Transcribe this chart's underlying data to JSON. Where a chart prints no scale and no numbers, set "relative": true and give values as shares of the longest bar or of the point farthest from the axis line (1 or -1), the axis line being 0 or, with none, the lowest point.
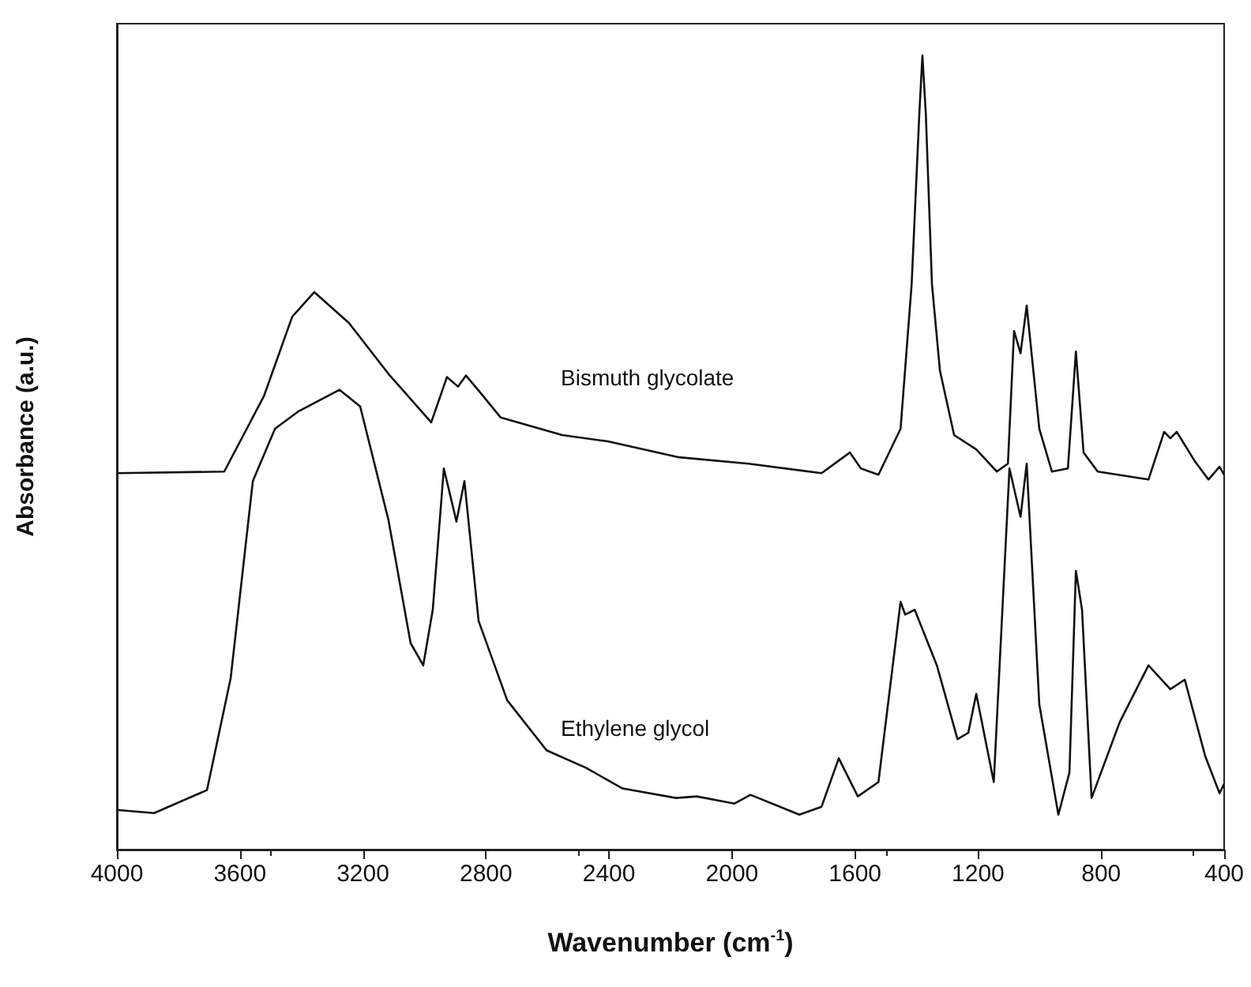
{
  "chart_data": {
    "type": "line",
    "relative": true,
    "xlabel": "Wavenumber (cm$^{-1}$)",
    "ylabel": "Absorbance (a.u.)",
    "xlim": [
      4000,
      400
    ],
    "xticks": [
      4000,
      3600,
      3200,
      2800,
      2400,
      2000,
      1600,
      1200,
      800,
      400
    ],
    "grid": false,
    "legend": false,
    "marker": "none",
    "line_style": "solid",
    "series": [
      {
        "name": "Bismuth glycolate",
        "color": "#111111",
        "x": [
          4000,
          3651,
          3522,
          3430,
          3358,
          3245,
          3117,
          2978,
          2927,
          2891,
          2865,
          2809,
          2752,
          2552,
          2403,
          2172,
          1946,
          1709,
          1617,
          1581,
          1524,
          1452,
          1416,
          1391,
          1381,
          1370,
          1350,
          1324,
          1278,
          1206,
          1139,
          1103,
          1083,
          1062,
          1042,
          1001,
          960,
          908,
          882,
          857,
          811,
          646,
          595,
          575,
          554,
          497,
          451,
          415,
          400
        ],
        "values": [
          0.474,
          0.476,
          0.571,
          0.671,
          0.702,
          0.663,
          0.599,
          0.538,
          0.595,
          0.583,
          0.597,
          0.571,
          0.544,
          0.522,
          0.514,
          0.494,
          0.486,
          0.474,
          0.5,
          0.48,
          0.472,
          0.53,
          0.712,
          0.927,
          1.0,
          0.927,
          0.712,
          0.603,
          0.522,
          0.504,
          0.476,
          0.486,
          0.653,
          0.625,
          0.685,
          0.53,
          0.476,
          0.48,
          0.627,
          0.5,
          0.476,
          0.466,
          0.526,
          0.518,
          0.526,
          0.49,
          0.466,
          0.482,
          0.472
        ]
      },
      {
        "name": "Ethylene glycol",
        "color": "#111111",
        "x": [
          4000,
          3879,
          3707,
          3630,
          3558,
          3486,
          3409,
          3276,
          3209,
          3117,
          3045,
          3004,
          2973,
          2937,
          2896,
          2870,
          2824,
          2731,
          2603,
          2475,
          2356,
          2182,
          2115,
          1992,
          1940,
          1781,
          1709,
          1653,
          1591,
          1524,
          1452,
          1437,
          1406,
          1334,
          1267,
          1232,
          1206,
          1149,
          1098,
          1062,
          1042,
          1001,
          939,
          903,
          882,
          862,
          831,
          739,
          646,
          575,
          528,
          461,
          415,
          400
        ],
        "values": [
          0.05,
          0.046,
          0.075,
          0.216,
          0.464,
          0.53,
          0.552,
          0.579,
          0.558,
          0.415,
          0.26,
          0.232,
          0.302,
          0.48,
          0.413,
          0.464,
          0.288,
          0.188,
          0.125,
          0.103,
          0.077,
          0.065,
          0.067,
          0.058,
          0.069,
          0.044,
          0.054,
          0.115,
          0.067,
          0.085,
          0.312,
          0.296,
          0.302,
          0.232,
          0.139,
          0.147,
          0.196,
          0.085,
          0.48,
          0.419,
          0.486,
          0.183,
          0.044,
          0.097,
          0.351,
          0.302,
          0.065,
          0.161,
          0.232,
          0.202,
          0.214,
          0.117,
          0.071,
          0.083
        ]
      }
    ]
  }
}
